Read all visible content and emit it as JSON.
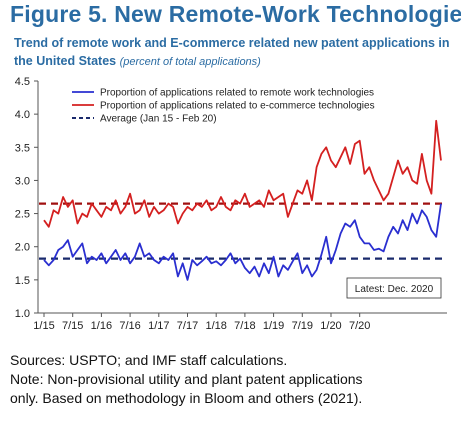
{
  "figure_title": "Figure 5. New Remote-Work Technologies",
  "subtitle_main": "Trend of remote work and E-commerce related new patent applications in the United States",
  "subtitle_note": "(percent of total applications)",
  "colors": {
    "title": "#2b6ca3",
    "remote": "#2a2fd0",
    "ecommerce": "#d42020",
    "avg_remote": "#1a2a6c",
    "avg_ecommerce": "#a01010"
  },
  "sources": [
    "Sources: USPTO; and IMF staff calculations.",
    "Note: Non-provisional utility and plant patent applications",
    "only. Based on methodology in Bloom and others (2021)."
  ],
  "chart_data": {
    "type": "line",
    "title": "Trend of remote work and E-commerce related new patent applications in the United States",
    "ylim": [
      1.0,
      4.5
    ],
    "yticks": [
      "1.0",
      "1.5",
      "2.0",
      "2.5",
      "3.0",
      "3.5",
      "4.0",
      "4.5"
    ],
    "xticks": [
      "1/15",
      "7/15",
      "1/16",
      "7/16",
      "1/17",
      "7/17",
      "1/18",
      "7/18",
      "1/19",
      "7/19",
      "1/20",
      "7/20"
    ],
    "x_range": [
      "1/15",
      "12/20"
    ],
    "grid": false,
    "legend_position": "top",
    "annotation": "Latest: Dec. 2020",
    "series": [
      {
        "name": "Proportion of applications related to remote work technologies",
        "color": "#2a2fd0",
        "values": [
          1.8,
          1.72,
          1.8,
          1.95,
          2.0,
          2.1,
          1.85,
          1.95,
          2.05,
          1.75,
          1.85,
          1.8,
          1.9,
          1.75,
          1.85,
          1.95,
          1.8,
          1.9,
          1.75,
          1.85,
          2.05,
          1.85,
          1.9,
          1.8,
          1.75,
          1.85,
          1.8,
          1.9,
          1.55,
          1.75,
          1.5,
          1.8,
          1.72,
          1.78,
          1.85,
          1.75,
          1.78,
          1.72,
          1.8,
          1.9,
          1.75,
          1.82,
          1.68,
          1.6,
          1.7,
          1.55,
          1.75,
          1.6,
          1.85,
          1.55,
          1.72,
          1.65,
          1.78,
          1.9,
          1.6,
          1.72,
          1.55,
          1.65,
          1.88,
          2.15,
          1.75,
          1.95,
          2.2,
          2.35,
          2.3,
          2.4,
          2.15,
          2.05,
          2.05,
          1.95,
          1.97,
          1.93,
          2.15,
          2.3,
          2.2,
          2.4,
          2.25,
          2.5,
          2.35,
          2.55,
          2.45,
          2.25,
          2.15,
          2.65
        ]
      },
      {
        "name": "Proportion of applications related to e-commerce technologies",
        "color": "#d42020",
        "values": [
          2.4,
          2.3,
          2.55,
          2.5,
          2.75,
          2.6,
          2.7,
          2.35,
          2.5,
          2.45,
          2.65,
          2.55,
          2.45,
          2.6,
          2.55,
          2.7,
          2.5,
          2.6,
          2.8,
          2.5,
          2.55,
          2.7,
          2.45,
          2.6,
          2.5,
          2.55,
          2.65,
          2.6,
          2.35,
          2.5,
          2.6,
          2.55,
          2.65,
          2.6,
          2.7,
          2.55,
          2.6,
          2.75,
          2.6,
          2.55,
          2.7,
          2.65,
          2.8,
          2.6,
          2.65,
          2.7,
          2.6,
          2.85,
          2.7,
          2.75,
          2.8,
          2.45,
          2.65,
          2.85,
          2.8,
          3.0,
          2.7,
          3.2,
          3.4,
          3.5,
          3.3,
          3.2,
          3.35,
          3.5,
          3.25,
          3.55,
          3.6,
          3.1,
          3.2,
          3.0,
          2.85,
          2.7,
          2.8,
          3.05,
          3.3,
          3.1,
          3.2,
          3.0,
          2.95,
          3.4,
          3.0,
          2.8,
          3.9,
          3.3
        ]
      }
    ],
    "reference_lines": [
      {
        "name": "Average (Jan 15 - Feb 20)",
        "value": 1.82,
        "color": "#1a2a6c"
      },
      {
        "name": "",
        "value": 2.65,
        "color": "#a01010"
      }
    ],
    "legend": [
      "Proportion of applications related to remote work technologies",
      "Proportion of applications related to e-commerce technologies",
      "Average (Jan 15 - Feb 20)"
    ]
  }
}
